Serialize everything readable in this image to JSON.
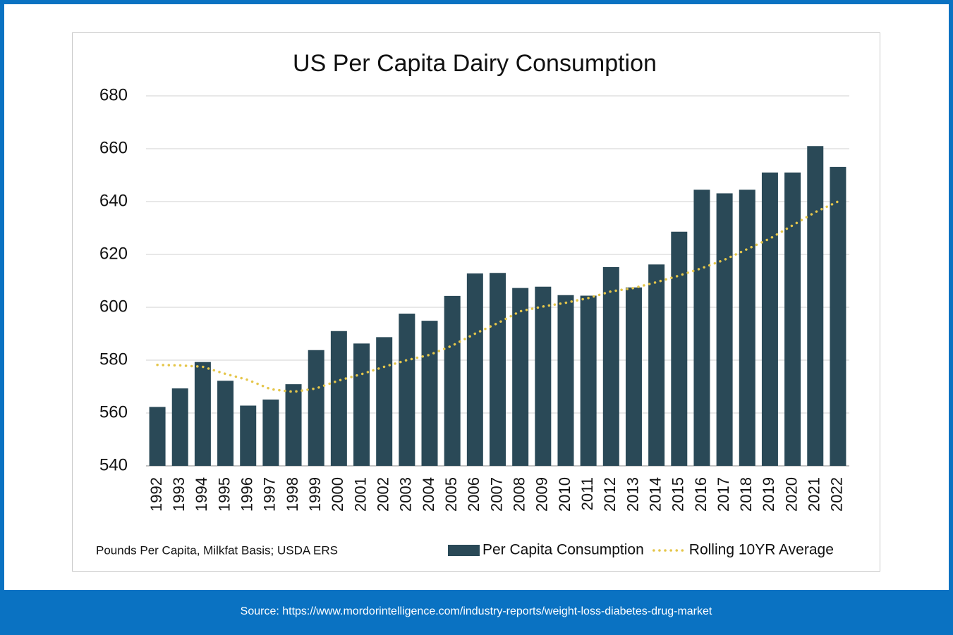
{
  "chart_data": {
    "type": "bar-line",
    "title": "US Per Capita Dairy Consumption",
    "note": "Pounds Per Capita, Milkfat Basis; USDA ERS",
    "categories": [
      "1992",
      "1993",
      "1994",
      "1995",
      "1996",
      "1997",
      "1998",
      "1999",
      "2000",
      "2001",
      "2002",
      "2003",
      "2004",
      "2005",
      "2006",
      "2007",
      "2008",
      "2009",
      "2010",
      "2011",
      "2012",
      "2013",
      "2014",
      "2015",
      "2016",
      "2017",
      "2018",
      "2019",
      "2020",
      "2021",
      "2022"
    ],
    "series": [
      {
        "name": "Per Capita Consumption",
        "type": "bar",
        "color": "#2a4957",
        "values": [
          562.3,
          569.3,
          579.3,
          572.2,
          562.8,
          565.1,
          570.9,
          583.8,
          591.0,
          586.3,
          588.7,
          597.6,
          594.9,
          604.3,
          612.8,
          613.0,
          607.3,
          607.8,
          604.6,
          604.4,
          615.2,
          607.5,
          616.2,
          628.6,
          644.5,
          643.1,
          644.5,
          651.0,
          651.0,
          661.0,
          653.1
        ]
      },
      {
        "name": "Rolling 10YR Average",
        "type": "line",
        "color": "#e5c64a",
        "values": [
          578.2,
          578.0,
          577.5,
          574.8,
          572.5,
          569.0,
          568.0,
          569.3,
          572.3,
          574.7,
          577.5,
          580.0,
          582.0,
          585.5,
          590.0,
          594.0,
          598.5,
          600.3,
          601.7,
          603.5,
          606.0,
          607.3,
          609.5,
          612.0,
          614.8,
          618.0,
          622.0,
          626.0,
          631.0,
          636.0,
          640.0
        ]
      }
    ],
    "ylim": [
      540,
      680
    ],
    "yticks": [
      540,
      560,
      580,
      600,
      620,
      640,
      660,
      680
    ],
    "grid": true
  },
  "source": "Source: https://www.mordorintelligence.com/industry-reports/weight-loss-diabetes-drug-market"
}
